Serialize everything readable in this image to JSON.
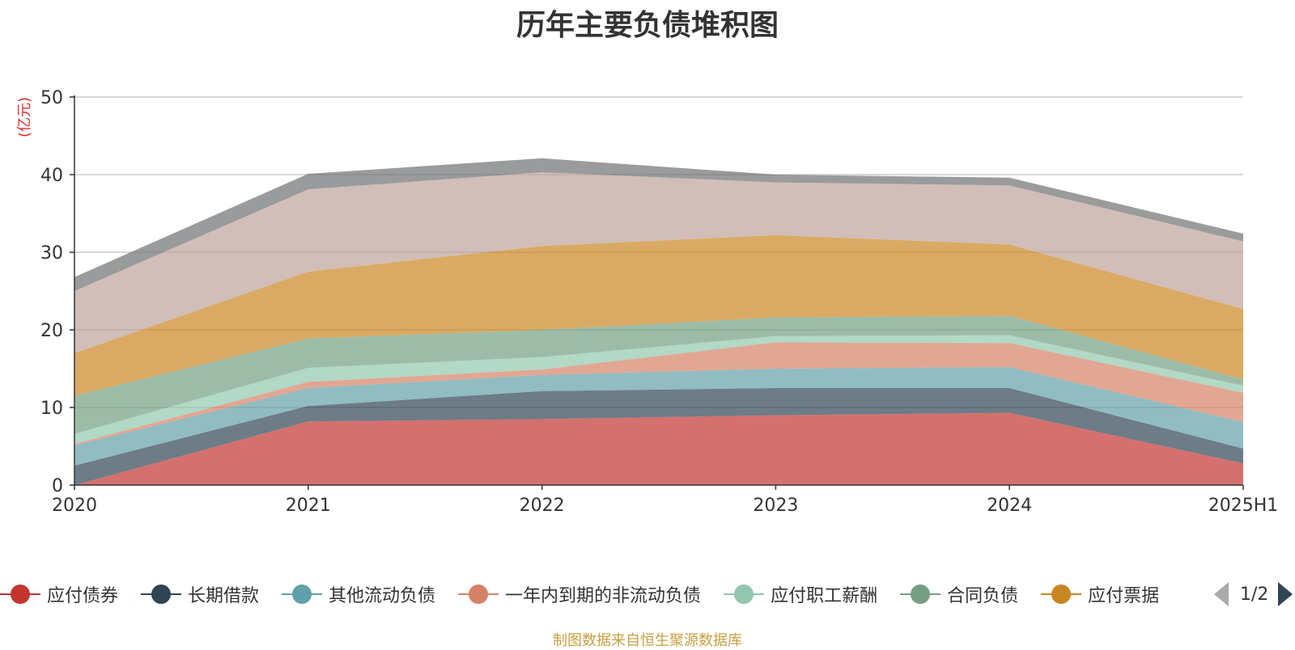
{
  "chart_data": {
    "type": "area",
    "stacked": true,
    "title": "历年主要负债堆积图",
    "ylabel": "(亿元)",
    "xlabel": "",
    "categories": [
      "2020",
      "2021",
      "2022",
      "2023",
      "2024",
      "2025H1"
    ],
    "ylim": [
      0,
      50
    ],
    "yticks": [
      0,
      10,
      20,
      30,
      40,
      50
    ],
    "grid": true,
    "series": [
      {
        "name": "应付债券",
        "color": "#c23531",
        "values": [
          0,
          8.2,
          8.5,
          9.0,
          9.3,
          2.8
        ]
      },
      {
        "name": "长期借款",
        "color": "#2f4554",
        "values": [
          2.5,
          2.0,
          3.6,
          3.5,
          3.2,
          1.9
        ]
      },
      {
        "name": "其他流动负债",
        "color": "#61a0a8",
        "values": [
          2.6,
          2.3,
          2.1,
          2.5,
          2.7,
          3.4
        ]
      },
      {
        "name": "一年内到期的非流动负债",
        "color": "#d48265",
        "values": [
          0.2,
          0.8,
          0.7,
          3.4,
          3.1,
          3.8
        ]
      },
      {
        "name": "应付职工薪酬",
        "color": "#91c7ae",
        "values": [
          1.3,
          1.8,
          1.6,
          0.8,
          1.0,
          0.9
        ]
      },
      {
        "name": "合同负债",
        "color": "#749f83",
        "values": [
          4.9,
          3.8,
          3.5,
          2.4,
          2.5,
          0.8
        ]
      },
      {
        "name": "应付票据",
        "color": "#ca8622",
        "values": [
          5.5,
          8.6,
          10.8,
          10.6,
          9.2,
          9.1
        ]
      },
      {
        "name": "",
        "color": "#bda29a",
        "values": [
          8.0,
          10.6,
          9.5,
          6.8,
          7.6,
          8.7
        ]
      },
      {
        "name": "",
        "color": "#6e7074",
        "values": [
          1.8,
          2.0,
          1.8,
          1.0,
          1.0,
          1.0
        ]
      }
    ]
  },
  "legend": {
    "page_indicator": "1/2"
  },
  "source_note": "制图数据来自恒生聚源数据库"
}
